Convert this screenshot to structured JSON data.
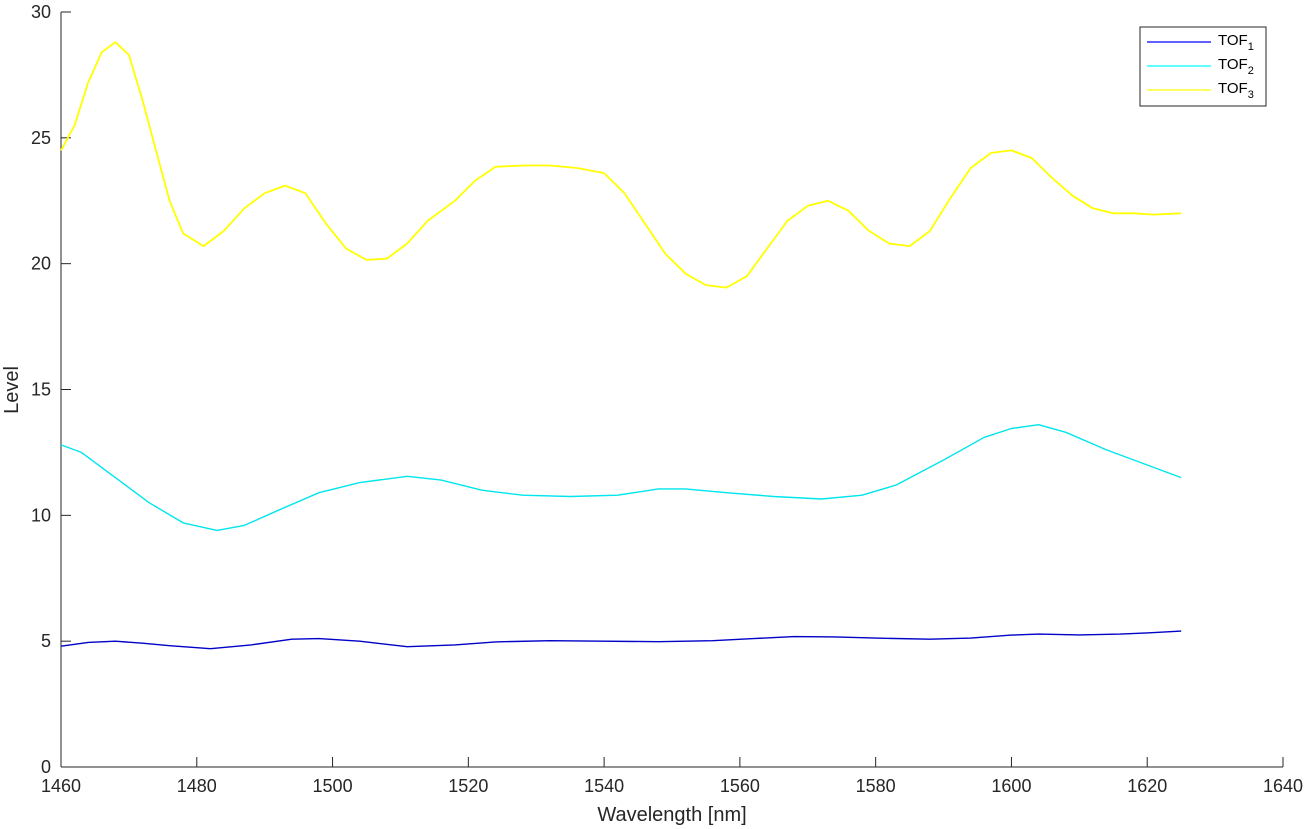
{
  "chart_data": {
    "type": "line",
    "title": "",
    "xlabel": "Wavelength [nm]",
    "ylabel": "Level",
    "xlim": [
      1460,
      1640
    ],
    "ylim": [
      0,
      30
    ],
    "xticks": [
      "1460",
      "1480",
      "1500",
      "1520",
      "1540",
      "1560",
      "1580",
      "1600",
      "1620",
      "1640"
    ],
    "yticks": [
      "0",
      "5",
      "10",
      "15",
      "20",
      "25",
      "30"
    ],
    "grid": false,
    "legend_position": "top-right",
    "legend": [
      {
        "base": "TOF",
        "sub": "1",
        "color": "#0000ff"
      },
      {
        "base": "TOF",
        "sub": "2",
        "color": "#00ffff"
      },
      {
        "base": "TOF",
        "sub": "3",
        "color": "#ffff00"
      }
    ],
    "series": [
      {
        "name": "TOF1",
        "color": "#0000c8",
        "x": [
          1460,
          1464,
          1468,
          1472,
          1476,
          1482,
          1488,
          1494,
          1498,
          1504,
          1511,
          1518,
          1524,
          1532,
          1540,
          1548,
          1556,
          1562,
          1568,
          1574,
          1580,
          1588,
          1594,
          1600,
          1604,
          1610,
          1616,
          1620,
          1625
        ],
        "y": [
          4.8,
          4.95,
          5.0,
          4.92,
          4.82,
          4.7,
          4.85,
          5.08,
          5.1,
          5.0,
          4.78,
          4.85,
          4.97,
          5.02,
          5.0,
          4.98,
          5.02,
          5.1,
          5.18,
          5.17,
          5.12,
          5.08,
          5.12,
          5.24,
          5.28,
          5.25,
          5.28,
          5.33,
          5.4
        ]
      },
      {
        "name": "TOF2",
        "color": "#00e5ee",
        "x": [
          1460,
          1463,
          1468,
          1473,
          1478,
          1483,
          1487,
          1492,
          1498,
          1504,
          1511,
          1516,
          1522,
          1528,
          1535,
          1542,
          1548,
          1552,
          1558,
          1565,
          1572,
          1578,
          1583,
          1590,
          1596,
          1600,
          1604,
          1608,
          1614,
          1620,
          1625
        ],
        "y": [
          12.8,
          12.5,
          11.5,
          10.5,
          9.7,
          9.4,
          9.6,
          10.2,
          10.9,
          11.3,
          11.55,
          11.4,
          11.0,
          10.8,
          10.75,
          10.8,
          11.05,
          11.05,
          10.9,
          10.75,
          10.65,
          10.8,
          11.2,
          12.2,
          13.1,
          13.45,
          13.6,
          13.3,
          12.6,
          12.0,
          11.5
        ]
      },
      {
        "name": "TOF3",
        "color": "#ffff00",
        "x": [
          1460,
          1462,
          1464,
          1466,
          1468,
          1470,
          1472,
          1474,
          1476,
          1478,
          1481,
          1484,
          1487,
          1490,
          1493,
          1496,
          1499,
          1502,
          1505,
          1508,
          1511,
          1514,
          1518,
          1521,
          1524,
          1528,
          1532,
          1536,
          1540,
          1543,
          1546,
          1549,
          1552,
          1555,
          1558,
          1561,
          1564,
          1567,
          1570,
          1573,
          1576,
          1579,
          1582,
          1585,
          1588,
          1591,
          1594,
          1597,
          1600,
          1603,
          1606,
          1609,
          1612,
          1615,
          1618,
          1621,
          1625
        ],
        "y": [
          24.5,
          25.5,
          27.2,
          28.4,
          28.8,
          28.3,
          26.5,
          24.5,
          22.5,
          21.2,
          20.7,
          21.3,
          22.2,
          22.8,
          23.1,
          22.8,
          21.6,
          20.6,
          20.15,
          20.2,
          20.8,
          21.7,
          22.5,
          23.3,
          23.85,
          23.9,
          23.9,
          23.8,
          23.6,
          22.8,
          21.6,
          20.4,
          19.6,
          19.15,
          19.05,
          19.5,
          20.6,
          21.7,
          22.3,
          22.5,
          22.1,
          21.3,
          20.8,
          20.7,
          21.3,
          22.6,
          23.8,
          24.4,
          24.5,
          24.2,
          23.4,
          22.7,
          22.2,
          22.0,
          22.0,
          21.95,
          22.0
        ]
      }
    ]
  }
}
